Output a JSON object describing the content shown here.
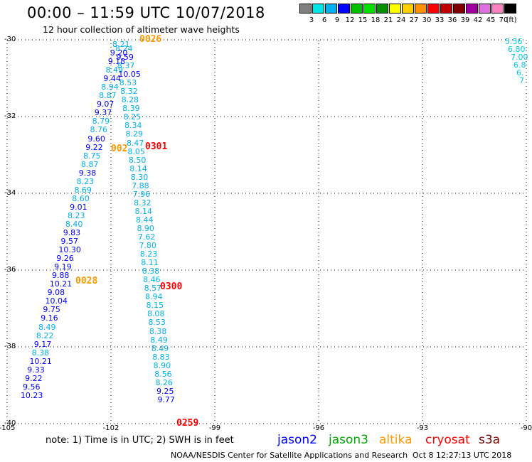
{
  "header": {
    "title": "00:00 – 11:59 UTC 10/07/2018",
    "subtitle": "12 hour collection of altimeter wave heights"
  },
  "colorbar": {
    "colors": [
      "#808080",
      "#00e5e5",
      "#00b0f0",
      "#0000ff",
      "#00c000",
      "#00e000",
      "#009000",
      "#ffff00",
      "#ffd000",
      "#ff9000",
      "#ff0000",
      "#c00000",
      "#800000",
      "#a000a0",
      "#e070e0",
      "#ff80c0",
      "#000000"
    ],
    "labels": [
      "3",
      "6",
      "9",
      "12",
      "15",
      "18",
      "21",
      "24",
      "27",
      "30",
      "33",
      "36",
      "39",
      "42",
      "45",
      "70",
      "(ft)"
    ]
  },
  "axes": {
    "lat_labels": [
      "-30",
      "-32",
      "-34",
      "-36",
      "-38",
      "-40"
    ],
    "lon_labels": [
      "-105",
      "-102",
      "-99",
      "-96",
      "-93",
      "-90"
    ],
    "lat_range": [
      -40,
      -30
    ],
    "lon_range": [
      -105,
      -90
    ]
  },
  "tracks": [
    {
      "values": [
        "8.21",
        "8.24",
        "9.20",
        "9.59",
        "9.18",
        "8.37",
        "8.49",
        "10.05",
        "9.44",
        "8.53",
        "8.94",
        "8.32",
        "8.87",
        "8.28",
        "9.07",
        "8.39",
        "9.37",
        "8.25",
        "8.79",
        "8.34",
        "8.76",
        "8.29",
        "9.60",
        "8.47",
        "9.22",
        "8.05",
        "8.75",
        "8.50",
        "8.87",
        "8.14",
        "9.38",
        "8.30",
        "8.23",
        "7.88",
        "8.69",
        "7.96",
        "8.60",
        "8.32",
        "9.01",
        "8.14",
        "8.23",
        "8.44",
        "8.40",
        "8.90",
        "9.83",
        "7.62",
        "9.57",
        "7.80",
        "10.30",
        "8.23",
        "9.26",
        "8.11",
        "9.19",
        "8.38",
        "9.88",
        "8.46",
        "10.21",
        "8.57",
        "9.08",
        "8.94",
        "10.04",
        "8.15",
        "9.75",
        "8.08",
        "9.16",
        "8.53",
        "8.49",
        "8.38",
        "8.22",
        "8.49",
        "9.17",
        "8.49",
        "8.38",
        "8.83",
        "10.21",
        "8.90",
        "9.33",
        "8.56",
        "9.22",
        "8.26",
        "9.56",
        "9.25",
        "10.23",
        "9.77"
      ]
    },
    {
      "values": [
        "5.56",
        "6.80",
        "7.00",
        "6.8",
        "6.",
        "7"
      ]
    }
  ],
  "passes": [
    {
      "label": "0026",
      "color": "#ff9900"
    },
    {
      "label": "0301",
      "color": "#ff0000"
    },
    {
      "label": "0028",
      "color": "#ff9900"
    },
    {
      "label": "0300",
      "color": "#ff0000"
    },
    {
      "label": "0259",
      "color": "#ff0000"
    },
    {
      "label": "002",
      "color": "#ff9900"
    }
  ],
  "note": "note: 1) Time is in UTC; 2) SWH is in feet",
  "legend": [
    {
      "name": "jason2",
      "color": "#0000ff"
    },
    {
      "name": "jason3",
      "color": "#00aa00"
    },
    {
      "name": "altika",
      "color": "#ff9900"
    },
    {
      "name": "cryosat",
      "color": "#ff0000"
    },
    {
      "name": "s3a",
      "color": "#800000"
    }
  ],
  "footer": {
    "credit": "NOAA/NESDIS Center for Satellite Applications and Research",
    "timestamp": "Oct  8 12:27:13 UTC 2018"
  }
}
